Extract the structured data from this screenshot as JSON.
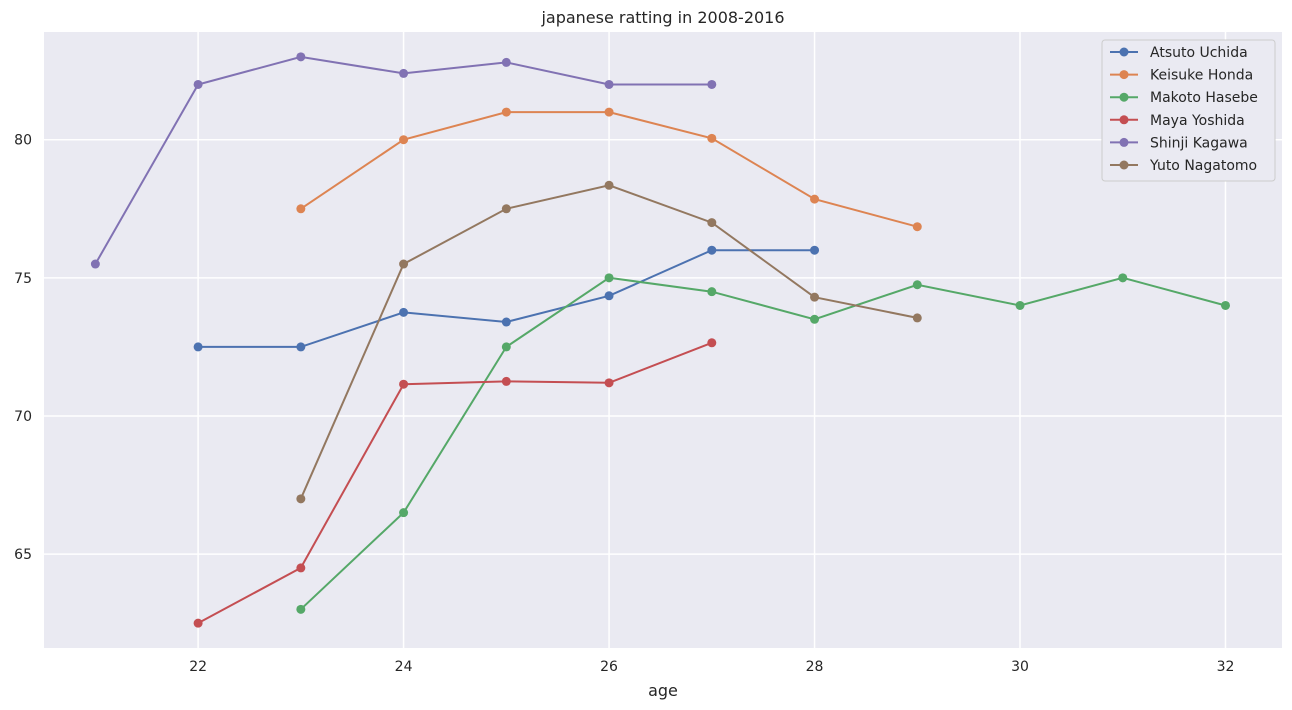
{
  "chart_data": {
    "type": "line",
    "title": "japanese ratting in 2008-2016",
    "xlabel": "age",
    "ylabel": "",
    "xlim": [
      20.5,
      32.55
    ],
    "ylim": [
      61.6,
      83.9
    ],
    "xticks": [
      22,
      24,
      26,
      28,
      30,
      32
    ],
    "yticks": [
      65,
      70,
      75,
      80
    ],
    "grid": true,
    "legend_position": "top-right",
    "background": "#eaeaf2",
    "series": [
      {
        "name": "Atsuto Uchida",
        "color": "#4c72b0",
        "x": [
          22,
          23,
          24,
          25,
          26,
          27,
          28
        ],
        "y": [
          72.5,
          72.5,
          73.75,
          73.4,
          74.35,
          76,
          76
        ]
      },
      {
        "name": "Keisuke Honda",
        "color": "#dd8452",
        "x": [
          23,
          24,
          25,
          26,
          27,
          28,
          29
        ],
        "y": [
          77.5,
          80,
          81,
          81,
          80.05,
          77.85,
          76.85
        ]
      },
      {
        "name": "Makoto Hasebe",
        "color": "#55a868",
        "x": [
          23,
          24,
          25,
          26,
          27,
          28,
          29,
          30,
          31,
          32
        ],
        "y": [
          63,
          66.5,
          72.5,
          75,
          74.5,
          73.5,
          74.75,
          74,
          75,
          74
        ]
      },
      {
        "name": "Maya Yoshida",
        "color": "#c44e52",
        "x": [
          22,
          23,
          24,
          25,
          26,
          27
        ],
        "y": [
          62.5,
          64.5,
          71.15,
          71.25,
          71.2,
          72.65
        ]
      },
      {
        "name": "Shinji Kagawa",
        "color": "#8172b3",
        "x": [
          21,
          22,
          23,
          24,
          25,
          26,
          27
        ],
        "y": [
          75.5,
          82,
          83,
          82.4,
          82.8,
          82,
          82
        ]
      },
      {
        "name": "Yuto Nagatomo",
        "color": "#937860",
        "x": [
          23,
          24,
          25,
          26,
          27,
          28,
          29
        ],
        "y": [
          67,
          75.5,
          77.5,
          78.35,
          77,
          74.3,
          73.55
        ]
      }
    ]
  }
}
